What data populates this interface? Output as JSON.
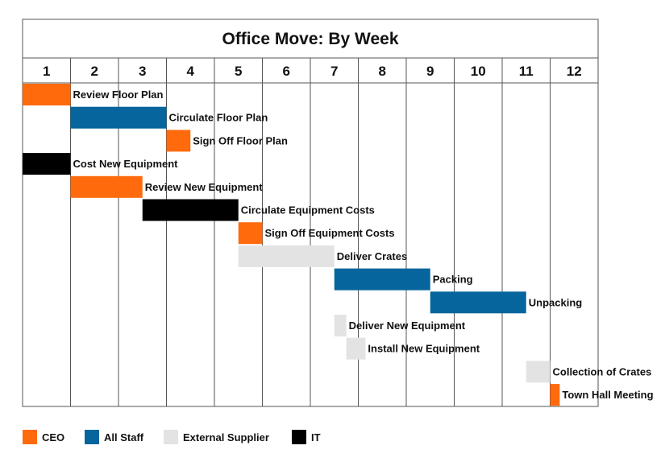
{
  "chart_data": {
    "type": "gantt",
    "title": "Office Move: By Week",
    "weeks": [
      "1",
      "2",
      "3",
      "4",
      "5",
      "6",
      "7",
      "8",
      "9",
      "10",
      "11",
      "12"
    ],
    "owners": [
      {
        "key": "ceo",
        "name": "CEO",
        "color": "#FF6A0D"
      },
      {
        "key": "staff",
        "name": "All Staff",
        "color": "#05659C"
      },
      {
        "key": "supplier",
        "name": "External Supplier",
        "color": "#E3E3E3"
      },
      {
        "key": "it",
        "name": "IT",
        "color": "#000000"
      }
    ],
    "tasks": [
      {
        "label": "Review Floor Plan",
        "start": 0,
        "end": 1,
        "owner": "ceo"
      },
      {
        "label": "Circulate Floor Plan",
        "start": 1,
        "end": 3,
        "owner": "staff"
      },
      {
        "label": "Sign Off Floor Plan",
        "start": 3,
        "end": 3.5,
        "owner": "ceo"
      },
      {
        "label": "Cost New Equipment",
        "start": 0,
        "end": 1,
        "owner": "it"
      },
      {
        "label": "Review New Equipment",
        "start": 1,
        "end": 2.5,
        "owner": "ceo"
      },
      {
        "label": "Circulate Equipment Costs",
        "start": 2.5,
        "end": 4.5,
        "owner": "it"
      },
      {
        "label": "Sign Off Equipment Costs",
        "start": 4.5,
        "end": 5,
        "owner": "ceo"
      },
      {
        "label": "Deliver Crates",
        "start": 4.5,
        "end": 6.5,
        "owner": "supplier"
      },
      {
        "label": "Packing",
        "start": 6.5,
        "end": 8.5,
        "owner": "staff"
      },
      {
        "label": "Unpacking",
        "start": 8.5,
        "end": 10.5,
        "owner": "staff"
      },
      {
        "label": "Deliver New Equipment",
        "start": 6.5,
        "end": 6.75,
        "owner": "supplier"
      },
      {
        "label": "Install New Equipment",
        "start": 6.75,
        "end": 7.15,
        "owner": "supplier"
      },
      {
        "label": "Collection of Crates",
        "start": 10.5,
        "end": 11,
        "owner": "supplier"
      },
      {
        "label": "Town Hall Meeting",
        "start": 11,
        "end": 11.2,
        "owner": "ceo"
      }
    ]
  }
}
